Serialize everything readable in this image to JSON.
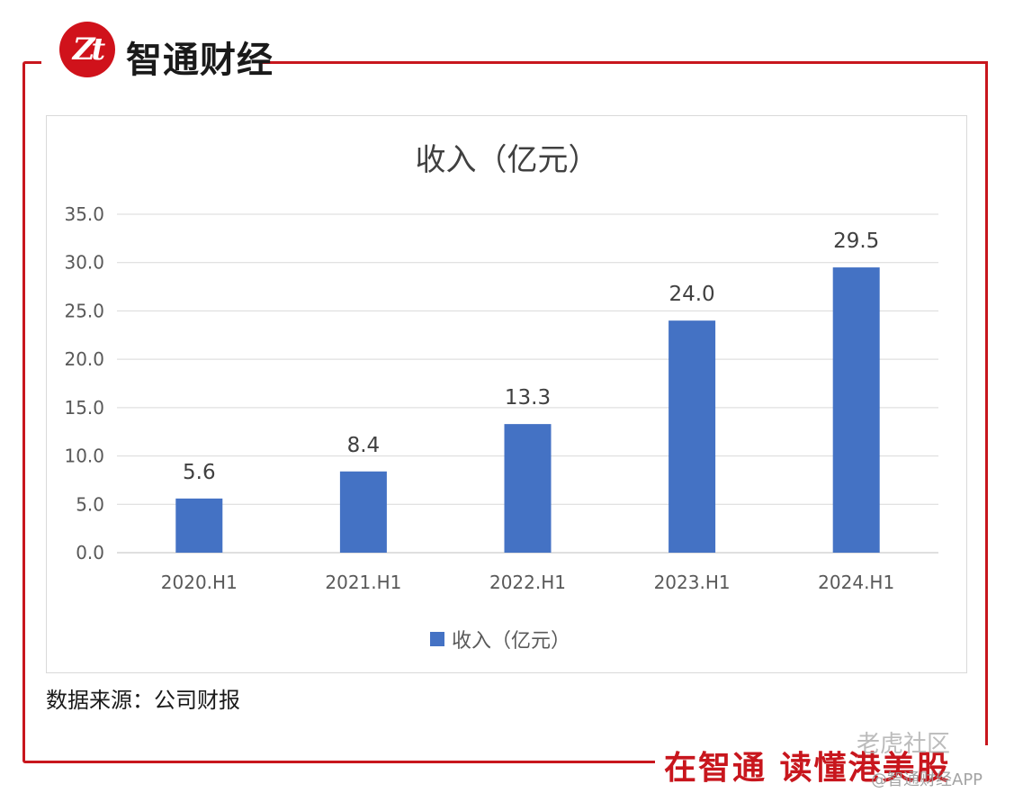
{
  "brand": {
    "logo_text": "Zt",
    "name": "智通财经"
  },
  "colors": {
    "accent": "#c8161d",
    "bar": "#4472c4"
  },
  "chart_data": {
    "type": "bar",
    "title": "收入（亿元）",
    "categories": [
      "2020.H1",
      "2021.H1",
      "2022.H1",
      "2023.H1",
      "2024.H1"
    ],
    "series": [
      {
        "name": "收入（亿元）",
        "values": [
          5.6,
          8.4,
          13.3,
          24.0,
          29.5
        ],
        "data_labels": [
          "5.6",
          "8.4",
          "13.3",
          "24.0",
          "29.5"
        ]
      }
    ],
    "y_ticks": [
      "0.0",
      "5.0",
      "10.0",
      "15.0",
      "20.0",
      "25.0",
      "30.0",
      "35.0"
    ],
    "ylim": [
      0,
      35
    ],
    "grid": true,
    "legend": "bottom"
  },
  "source": "数据来源：公司财报",
  "slogan": "在智通  读懂港美股",
  "watermark": {
    "community": "老虎社区",
    "app": "@智通财经APP"
  }
}
